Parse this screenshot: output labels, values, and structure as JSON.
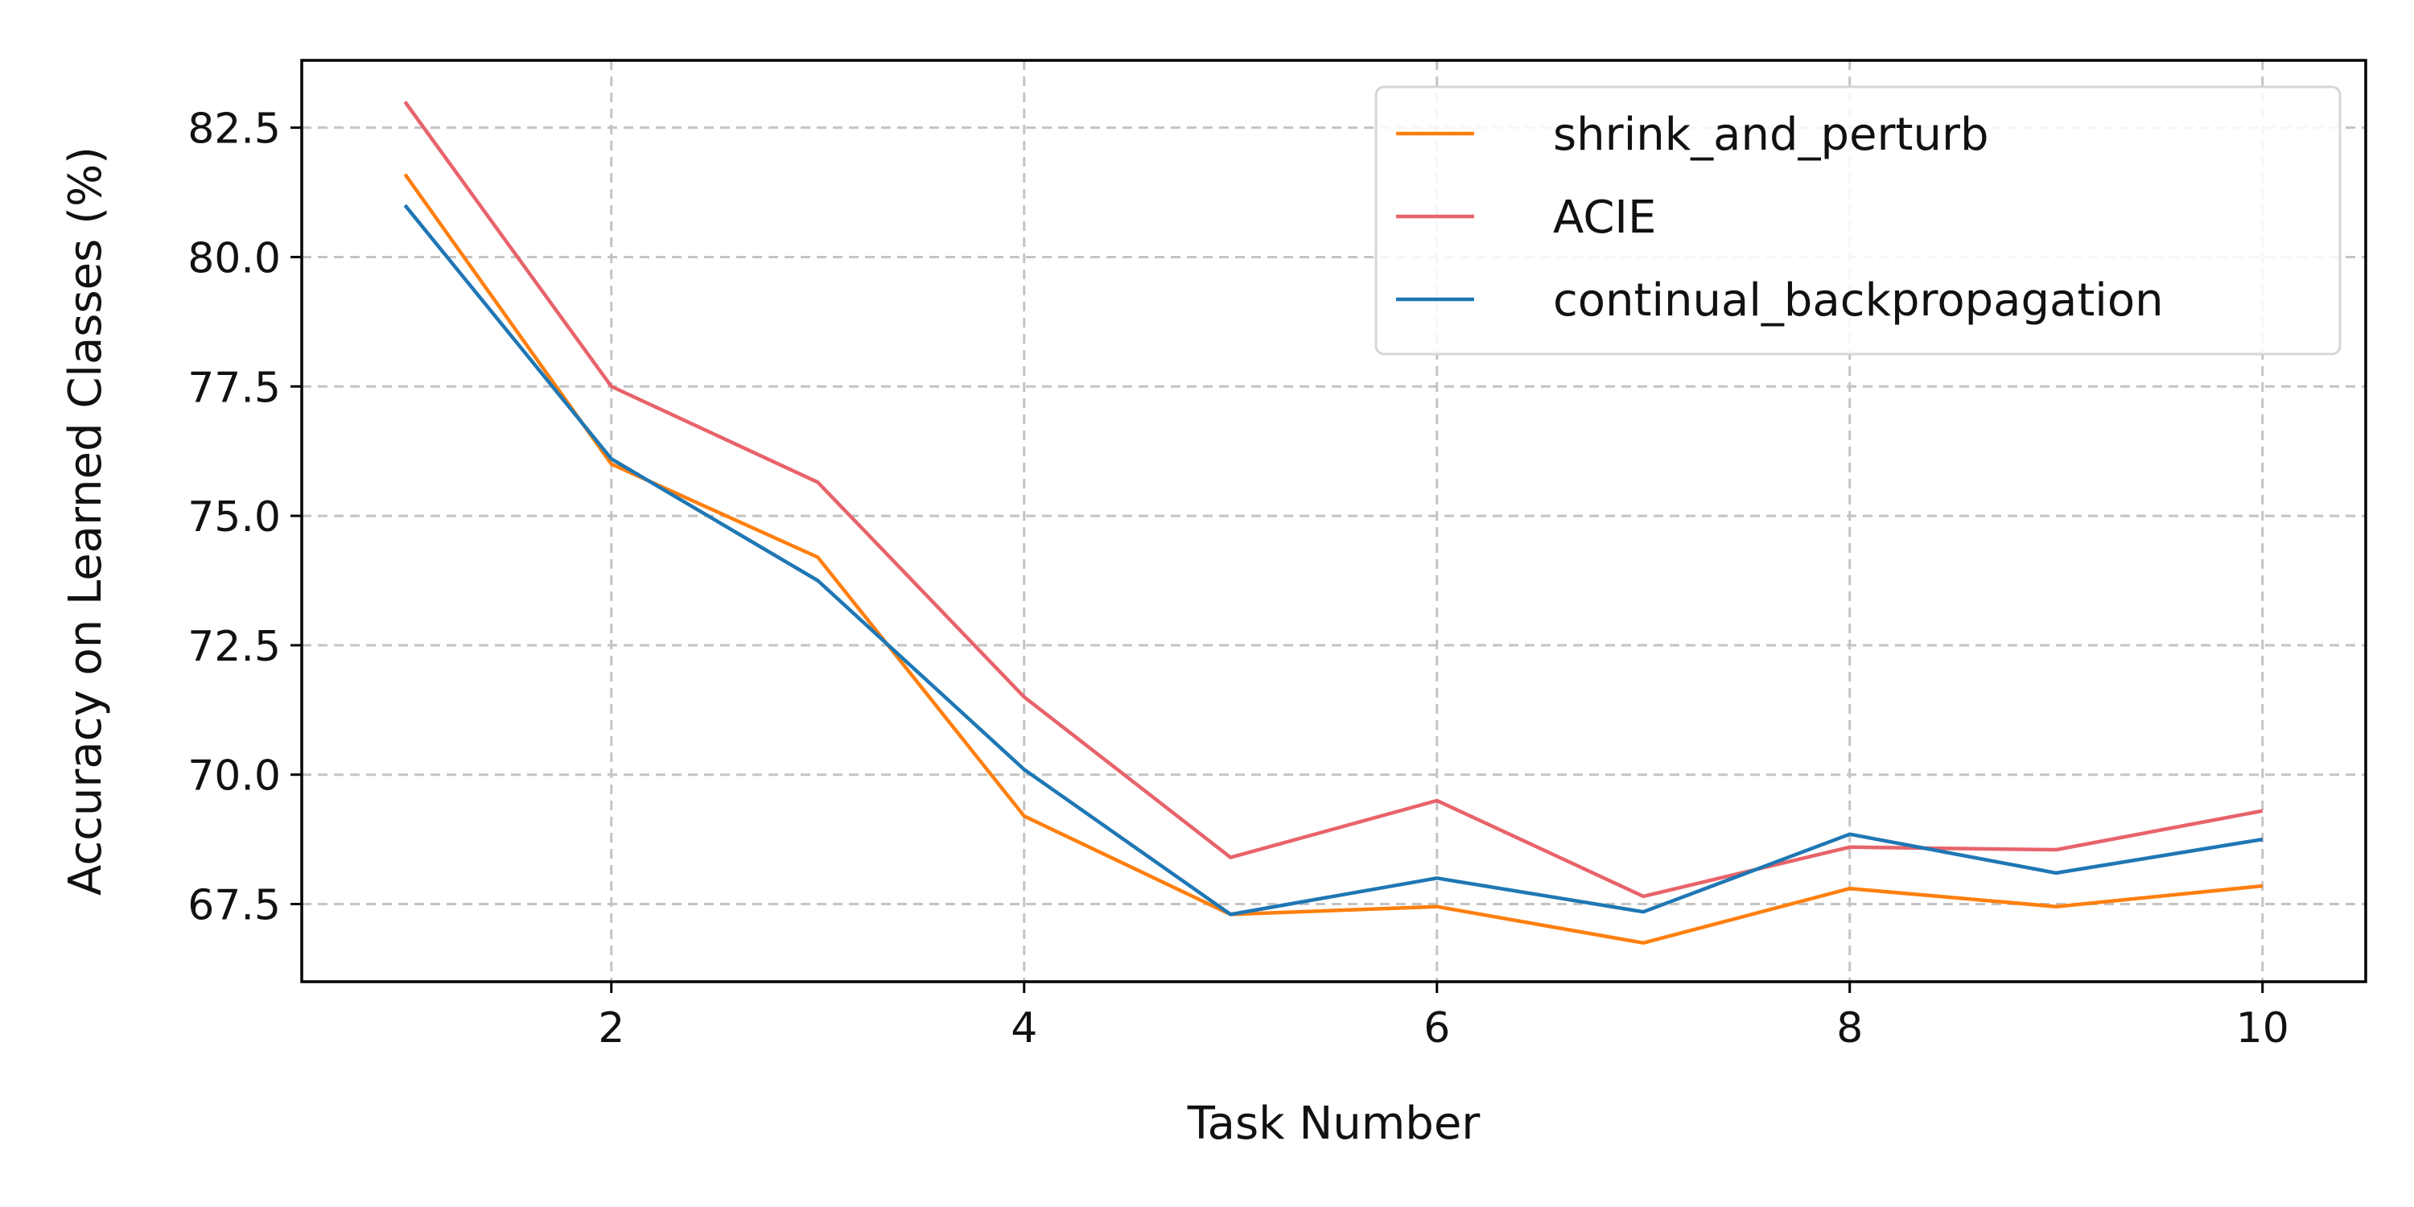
{
  "chart_data": {
    "type": "line",
    "title": "",
    "xlabel": "Task Number",
    "ylabel": "Accuracy on Learned Classes (%)",
    "xlim": [
      0.5,
      10.5
    ],
    "ylim": [
      66.0,
      83.8
    ],
    "xticks": [
      "2",
      "4",
      "6",
      "8",
      "10"
    ],
    "yticks": [
      "67.5",
      "70.0",
      "72.5",
      "75.0",
      "77.5",
      "80.0",
      "82.5"
    ],
    "grid": true,
    "legend_position": "top-right",
    "x": [
      1,
      2,
      3,
      4,
      5,
      6,
      7,
      8,
      9,
      10
    ],
    "series": [
      {
        "name": "shrink_and_perturb",
        "color": "#ff7f0e",
        "values": [
          81.6,
          76.0,
          74.2,
          69.2,
          67.3,
          67.45,
          66.75,
          67.8,
          67.45,
          67.85
        ]
      },
      {
        "name": "ACIE",
        "color": "#e8636a",
        "values": [
          83.0,
          77.5,
          75.65,
          71.5,
          68.4,
          69.5,
          67.65,
          68.6,
          68.55,
          69.3
        ]
      },
      {
        "name": "continual_backpropagation",
        "color": "#1f77b4",
        "values": [
          81.0,
          76.1,
          73.75,
          70.1,
          67.3,
          68.0,
          67.35,
          68.85,
          68.1,
          68.75
        ]
      }
    ]
  }
}
